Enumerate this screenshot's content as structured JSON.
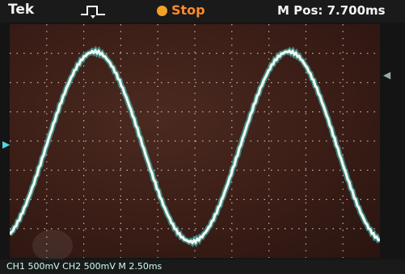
{
  "header": {
    "brand": "Tek",
    "trigger_icon": "pulse-icon",
    "run_state": "Stop",
    "run_state_color": "#f2a12a",
    "horizontal_position": "M Pos: 7.700ms"
  },
  "display": {
    "trace_color": "#e9f5ef",
    "trace_glow": "#49d6cc",
    "grid_color": "#d8d0c8"
  },
  "markers": {
    "channel_marker_icon": "arrow-right-icon",
    "trigger_level_icon": "arrow-left-icon"
  },
  "footer": {
    "status": "CH1 500mV   CH2 500mV   M 2.50ms"
  }
}
